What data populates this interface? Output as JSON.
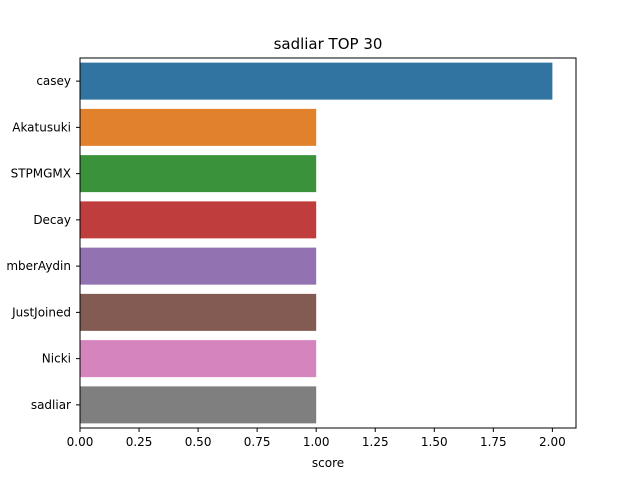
{
  "chart_data": {
    "type": "bar",
    "orientation": "horizontal",
    "title": "sadliar TOP 30",
    "xlabel": "score",
    "ylabel": "",
    "categories": [
      "casey",
      "Akatusuki",
      "STPMGMX",
      "Decay",
      "mberAydin",
      "JustJoined",
      "Nicki",
      "sadliar"
    ],
    "values": [
      2,
      1,
      1,
      1,
      1,
      1,
      1,
      1
    ],
    "colors": [
      "#3274a1",
      "#e1812c",
      "#3a923a",
      "#c03d3e",
      "#9372b2",
      "#845b53",
      "#d684bd",
      "#7f7f7f"
    ],
    "xlim": [
      0,
      2.1
    ],
    "xticks": [
      "0.00",
      "0.25",
      "0.50",
      "0.75",
      "1.00",
      "1.25",
      "1.50",
      "1.75",
      "2.00"
    ],
    "grid": false,
    "legend": "none"
  }
}
